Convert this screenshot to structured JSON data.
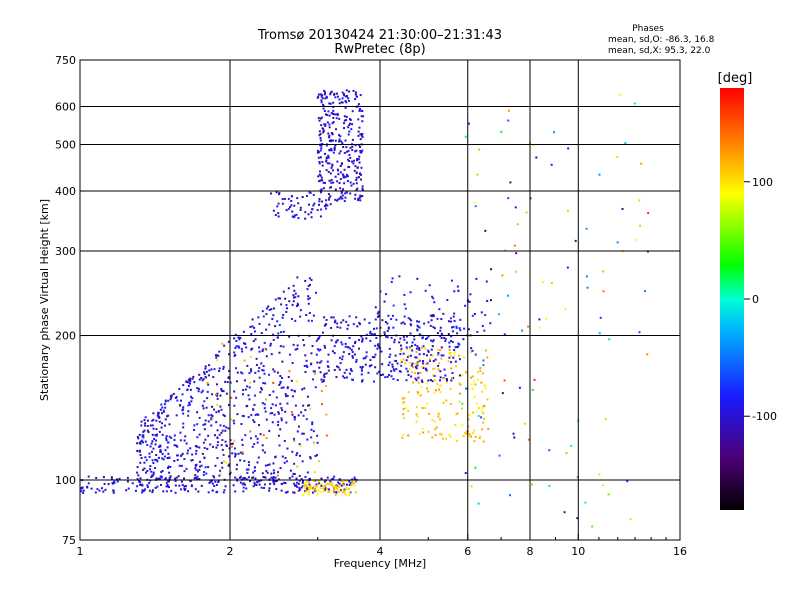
{
  "chart_data": {
    "type": "scatter",
    "title": "Tromsø 20130424 21:30:00–21:31:43",
    "subtitle": "RwPretec (8p)",
    "xlabel": "Frequency [MHz]",
    "ylabel": "Stationary phase Virtual Height [km]",
    "x_scale": "log",
    "y_scale": "log",
    "xlim": [
      1,
      16
    ],
    "ylim": [
      75,
      750
    ],
    "x_ticks": [
      1,
      2,
      4,
      6,
      8,
      10,
      16
    ],
    "y_ticks": [
      75,
      100,
      200,
      300,
      400,
      500,
      600,
      750
    ],
    "x_grid": [
      2,
      4,
      6,
      8,
      10
    ],
    "y_grid": [
      100,
      200,
      300,
      400,
      500,
      600
    ],
    "legend": {
      "title": "Phases",
      "lines": [
        "mean, sd,O:  -86.3, 16.8",
        "mean, sd,X:  95.3, 22.0"
      ]
    },
    "colorbar": {
      "label": "[deg]",
      "range": [
        -180,
        180
      ],
      "ticks": [
        100,
        0,
        -100
      ]
    },
    "colors": {
      "frame": "#000000",
      "background": "#ffffff"
    },
    "clusters": [
      {
        "name": "E-trace O",
        "x": [
          1.0,
          3.6
        ],
        "y": [
          94,
          102
        ],
        "count": 260,
        "phase": [
          -120,
          -75
        ]
      },
      {
        "name": "E-trace X",
        "x": [
          2.8,
          3.6
        ],
        "y": [
          93,
          100
        ],
        "count": 80,
        "phase": [
          90,
          120
        ]
      },
      {
        "name": "F1 spread",
        "x": [
          1.3,
          3.0
        ],
        "y": [
          100,
          290
        ],
        "count": 750,
        "phase": [
          -120,
          -75
        ],
        "spread": "rising"
      },
      {
        "name": "F1 X echoes",
        "x": [
          1.8,
          3.2
        ],
        "y": [
          100,
          200
        ],
        "count": 40,
        "phase": [
          80,
          150
        ]
      },
      {
        "name": "F-layer O",
        "x": [
          3.0,
          5.8
        ],
        "y": [
          160,
          220
        ],
        "count": 330,
        "phase": [
          -120,
          -75
        ]
      },
      {
        "name": "F-layer X",
        "x": [
          4.4,
          6.6
        ],
        "y": [
          120,
          190
        ],
        "count": 170,
        "phase": [
          85,
          130
        ]
      },
      {
        "name": "upper F1",
        "x": [
          3.9,
          6.6
        ],
        "y": [
          180,
          270
        ],
        "count": 90,
        "phase": [
          -110,
          -70
        ]
      },
      {
        "name": "F2 spread",
        "x": [
          3.0,
          3.7
        ],
        "y": [
          380,
          650
        ],
        "count": 330,
        "phase": [
          -120,
          -80
        ]
      },
      {
        "name": "F2 base",
        "x": [
          2.4,
          3.2
        ],
        "y": [
          350,
          400
        ],
        "count": 60,
        "phase": [
          -120,
          -80
        ]
      },
      {
        "name": "high-freq noise",
        "x": [
          5.8,
          14.0
        ],
        "y": [
          80,
          650
        ],
        "count": 110,
        "phase": [
          -150,
          170
        ]
      }
    ]
  }
}
